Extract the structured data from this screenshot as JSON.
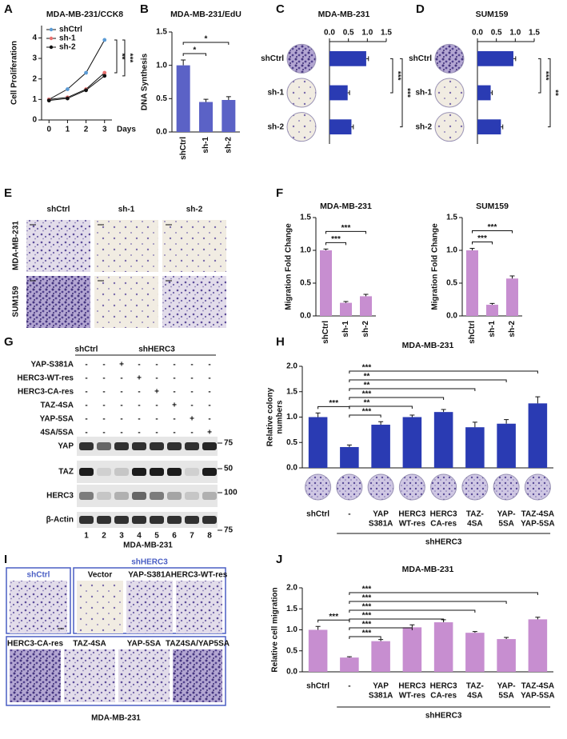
{
  "panel_labels": [
    "A",
    "B",
    "C",
    "D",
    "E",
    "F",
    "G",
    "H",
    "I",
    "J"
  ],
  "chart_data": [
    {
      "type": "line",
      "title": "MDA-MB-231/CCK8",
      "ylabel": "Cell Proliferation",
      "xlabel": "Days",
      "x": [
        0,
        1,
        2,
        3
      ],
      "xlim": [
        -0.4,
        3.4
      ],
      "xticks": [
        0,
        1,
        2,
        3
      ],
      "ylim": [
        0,
        4.6
      ],
      "yticks": [
        0,
        1,
        2,
        3,
        4
      ],
      "series": [
        {
          "name": "shCtrl",
          "color": "#5b9bd5",
          "values": [
            1.0,
            1.5,
            2.3,
            3.9
          ]
        },
        {
          "name": "sh-1",
          "color": "#e8706f",
          "values": [
            1.0,
            1.1,
            1.5,
            2.3
          ]
        },
        {
          "name": "sh-2",
          "color": "#111111",
          "values": [
            0.95,
            1.05,
            1.45,
            2.15
          ]
        }
      ],
      "annotations": [
        "**",
        "***"
      ]
    },
    {
      "type": "bar",
      "title": "MDA-MB-231/EdU",
      "ylabel": "DNA Synthesis",
      "categories": [
        "shCtrl",
        "sh-1",
        "sh-2"
      ],
      "values": [
        1.0,
        0.45,
        0.48
      ],
      "errors": [
        0.08,
        0.04,
        0.05
      ],
      "color": "#5b62c6",
      "ylim": [
        0,
        1.5
      ],
      "yticks": [
        {
          "value": 0,
          "label": "0.0"
        },
        0.5,
        {
          "value": 1,
          "label": "1.0"
        },
        1.5
      ],
      "annotations": [
        "*",
        "*"
      ]
    },
    {
      "type": "hbar",
      "title": "MDA-MB-231",
      "categories": [
        "shCtrl",
        "sh-1",
        "sh-2"
      ],
      "values": [
        0.97,
        0.48,
        0.58
      ],
      "errors": [
        0.06,
        0.05,
        0.05
      ],
      "color": "#2a3bb3",
      "xlim": [
        0,
        1.5
      ],
      "xticks": [
        {
          "value": 0,
          "label": "0.0"
        },
        0.5,
        {
          "value": 1,
          "label": "1.0"
        },
        1.5
      ],
      "annotations": [
        "***",
        "***"
      ]
    },
    {
      "type": "hbar",
      "title": "SUM159",
      "categories": [
        "shCtrl",
        "sh-1",
        "sh-2"
      ],
      "values": [
        0.95,
        0.35,
        0.62
      ],
      "errors": [
        0.06,
        0.04,
        0.05
      ],
      "color": "#2a3bb3",
      "xlim": [
        0,
        1.5
      ],
      "xticks": [
        {
          "value": 0,
          "label": "0.0"
        },
        0.5,
        {
          "value": 1,
          "label": "1.0"
        },
        1.5
      ],
      "annotations": [
        "***",
        "**"
      ]
    },
    {
      "type": "bar",
      "title": "MDA-MB-231",
      "ylabel": "Migration Fold Change",
      "categories": [
        "shCtrl",
        "sh-1",
        "sh-2"
      ],
      "values": [
        1.0,
        0.2,
        0.3
      ],
      "errors": [
        0.02,
        0.02,
        0.03
      ],
      "color": "#c78ed0",
      "ylim": [
        0,
        1.5
      ],
      "yticks": [
        {
          "value": 0,
          "label": "0.0"
        },
        0.5,
        {
          "value": 1,
          "label": "1.0"
        },
        1.5
      ],
      "annotations": [
        "***",
        "***"
      ]
    },
    {
      "type": "bar",
      "title": "SUM159",
      "ylabel": "Migration Fold Change",
      "categories": [
        "shCtrl",
        "sh-1",
        "sh-2"
      ],
      "values": [
        1.0,
        0.17,
        0.57
      ],
      "errors": [
        0.03,
        0.02,
        0.04
      ],
      "color": "#c78ed0",
      "ylim": [
        0,
        1.5
      ],
      "yticks": [
        {
          "value": 0,
          "label": "0.0"
        },
        0.5,
        {
          "value": 1,
          "label": "1.0"
        },
        1.5
      ],
      "annotations": [
        "***",
        "***"
      ]
    },
    {
      "type": "bar",
      "title": "MDA-MB-231",
      "ylabel": [
        "Relative colony",
        "numbers"
      ],
      "categories": [
        [
          "shCtrl"
        ],
        [
          "-"
        ],
        [
          "YAP",
          "S381A"
        ],
        [
          "HERC3",
          "WT-res"
        ],
        [
          "HERC3",
          "CA-res"
        ],
        [
          "TAZ-",
          "4SA"
        ],
        [
          "YAP-",
          "5SA"
        ],
        [
          "TAZ-4SA",
          "YAP-5SA"
        ]
      ],
      "values": [
        1.0,
        0.41,
        0.85,
        1.0,
        1.1,
        0.8,
        0.87,
        1.27
      ],
      "errors": [
        0.08,
        0.04,
        0.06,
        0.04,
        0.05,
        0.1,
        0.08,
        0.13
      ],
      "color": "#2a3bb3",
      "ylim": [
        0,
        2
      ],
      "yticks": [
        {
          "value": 0,
          "label": "0.0"
        },
        0.5,
        {
          "value": 1,
          "label": "1.0"
        },
        1.5,
        {
          "value": 2,
          "label": "2.0"
        }
      ],
      "group_label": "shHERC3",
      "annotations": [
        "***",
        "***",
        "**",
        "***",
        "**",
        "**",
        "***"
      ]
    },
    {
      "type": "bar",
      "title": "MDA-MB-231",
      "ylabel": "Relative cell migration",
      "categories": [
        [
          "shCtrl"
        ],
        [
          "-"
        ],
        [
          "YAP",
          "S381A"
        ],
        [
          "HERC3",
          "WT-res"
        ],
        [
          "HERC3",
          "CA-res"
        ],
        [
          "TAZ-",
          "4SA"
        ],
        [
          "YAP-",
          "5SA"
        ],
        [
          "TAZ-4SA",
          "YAP-5SA"
        ]
      ],
      "values": [
        1.0,
        0.34,
        0.73,
        1.06,
        1.18,
        0.93,
        0.78,
        1.25
      ],
      "errors": [
        0.08,
        0.02,
        0.04,
        0.06,
        0.06,
        0.03,
        0.04,
        0.05
      ],
      "color": "#c78ed0",
      "ylim": [
        0,
        2
      ],
      "yticks": [
        {
          "value": 0,
          "label": "0.0"
        },
        0.5,
        {
          "value": 1,
          "label": "1.0"
        },
        1.5,
        {
          "value": 2,
          "label": "2.0"
        }
      ],
      "group_label": "shHERC3",
      "annotations": [
        "***",
        "***",
        "***",
        "***",
        "***",
        "***",
        "***"
      ]
    }
  ],
  "panel_e": {
    "columns": [
      "shCtrl",
      "sh-1",
      "sh-2"
    ],
    "rows": [
      "MDA-MB-231",
      "SUM159"
    ]
  },
  "panel_g": {
    "groups": [
      "shCtrl",
      "shHERC3"
    ],
    "treatments": [
      {
        "label": "YAP-S381A",
        "lanes": [
          "-",
          "-",
          "+",
          "-",
          "-",
          "-",
          "-",
          "-"
        ]
      },
      {
        "label": "HERC3-WT-res",
        "lanes": [
          "-",
          "-",
          "-",
          "+",
          "-",
          "-",
          "-",
          "-"
        ]
      },
      {
        "label": "HERC3-CA-res",
        "lanes": [
          "-",
          "-",
          "-",
          "-",
          "+",
          "-",
          "-",
          "-"
        ]
      },
      {
        "label": "TAZ-4SA",
        "lanes": [
          "-",
          "-",
          "-",
          "-",
          "-",
          "+",
          "-",
          "-"
        ]
      },
      {
        "label": "YAP-5SA",
        "lanes": [
          "-",
          "-",
          "-",
          "-",
          "-",
          "-",
          "+",
          "-"
        ]
      },
      {
        "label": "4SA/5SA",
        "lanes": [
          "-",
          "-",
          "-",
          "-",
          "-",
          "-",
          "-",
          "+"
        ]
      }
    ],
    "blots": [
      {
        "label": "YAP",
        "marker": 75
      },
      {
        "label": "TAZ",
        "marker": 50
      },
      {
        "label": "HERC3",
        "marker": 100
      },
      {
        "label": "β-Actin",
        "marker": 75
      }
    ],
    "lane_numbers": [
      1,
      2,
      3,
      4,
      5,
      6,
      7,
      8
    ],
    "cell_line": "MDA-MB-231"
  },
  "panel_i": {
    "group": "shHERC3",
    "images": [
      "shCtrl",
      "Vector",
      "YAP-S381A",
      "HERC3-WT-res",
      "HERC3-CA-res",
      "TAZ-4SA",
      "YAP-5SA",
      "TAZ4SA/YAP5SA"
    ],
    "cell_line": "MDA-MB-231"
  }
}
